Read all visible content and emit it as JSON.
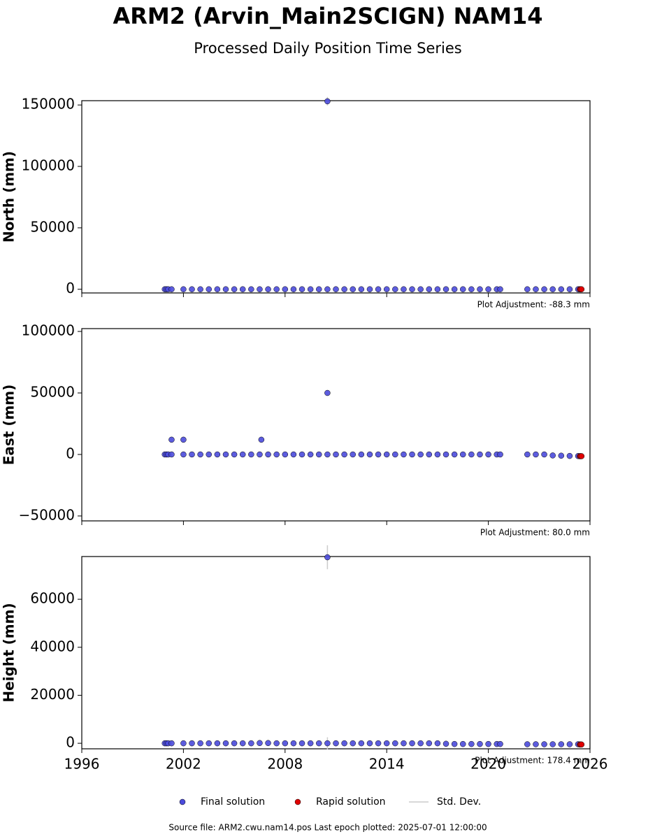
{
  "title": "ARM2 (Arvin_Main2SCIGN) NAM14",
  "subtitle": "Processed Daily Position Time Series",
  "std_dev": {
    "label": "Std. Dev.",
    "color": "#cccccc"
  },
  "footer": "Source file: ARM2.cwu.nam14.pos  Last epoch plotted: 2025-07-01 12:00:00",
  "chart_data": [
    {
      "type": "scatter",
      "ylabel": "North (mm)",
      "annotation": "Plot Adjustment: -88.3 mm",
      "xlim": [
        1996,
        2026
      ],
      "xticks": [
        1996,
        2002,
        2008,
        2014,
        2020,
        2026
      ],
      "xtick_labels": false,
      "ylim": [
        -3000,
        153500
      ],
      "yticks": [
        0,
        50000,
        100000,
        150000
      ],
      "series": [
        {
          "name": "Final solution",
          "color": "#4b4bdc",
          "x": [
            2000.9,
            2001.0,
            2001.1,
            2001.3,
            2002.0,
            2002.5,
            2003.0,
            2003.5,
            2004.0,
            2004.5,
            2005.0,
            2005.5,
            2006.0,
            2006.5,
            2007.0,
            2007.5,
            2008.0,
            2008.5,
            2009.0,
            2009.5,
            2010.0,
            2010.5,
            2011.0,
            2011.5,
            2012.0,
            2012.5,
            2013.0,
            2013.5,
            2014.0,
            2014.5,
            2015.0,
            2015.5,
            2016.0,
            2016.5,
            2017.0,
            2017.5,
            2018.0,
            2018.5,
            2019.0,
            2019.5,
            2020.0,
            2020.5,
            2020.7,
            2022.3,
            2022.8,
            2023.3,
            2023.8,
            2024.3,
            2024.8,
            2025.3,
            2010.5
          ],
          "values": [
            0,
            0,
            0,
            0,
            0,
            0,
            0,
            0,
            0,
            0,
            0,
            0,
            0,
            0,
            0,
            0,
            0,
            0,
            0,
            0,
            0,
            0,
            0,
            0,
            0,
            0,
            0,
            0,
            0,
            0,
            0,
            0,
            0,
            0,
            0,
            0,
            0,
            0,
            0,
            0,
            0,
            0,
            0,
            0,
            0,
            0,
            0,
            0,
            0,
            0,
            153000
          ],
          "errors": [
            100,
            100,
            100,
            100,
            100,
            100,
            100,
            100,
            100,
            100,
            100,
            100,
            100,
            100,
            100,
            100,
            100,
            100,
            100,
            100,
            100,
            100,
            100,
            100,
            100,
            100,
            100,
            100,
            100,
            100,
            100,
            100,
            100,
            100,
            100,
            100,
            100,
            100,
            100,
            100,
            100,
            100,
            100,
            100,
            100,
            100,
            100,
            100,
            100,
            100,
            3500
          ]
        },
        {
          "name": "Rapid solution",
          "color": "#e00000",
          "x": [
            2025.4,
            2025.45,
            2025.5
          ],
          "values": [
            0,
            0,
            0
          ],
          "errors": [
            100,
            100,
            100
          ]
        }
      ]
    },
    {
      "type": "scatter",
      "ylabel": "East (mm)",
      "annotation": "Plot Adjustment: 80.0 mm",
      "xlim": [
        1996,
        2026
      ],
      "xticks": [
        1996,
        2002,
        2008,
        2014,
        2020,
        2026
      ],
      "xtick_labels": false,
      "ylim": [
        -54000,
        102300
      ],
      "yticks": [
        {
          "value": -50000,
          "label": "−50000"
        },
        0,
        50000,
        100000
      ],
      "series": [
        {
          "name": "Final solution",
          "color": "#4b4bdc",
          "x": [
            2000.9,
            2001.0,
            2001.1,
            2001.3,
            2002.0,
            2002.5,
            2003.0,
            2003.5,
            2004.0,
            2004.5,
            2005.0,
            2005.5,
            2006.0,
            2006.5,
            2007.0,
            2007.5,
            2008.0,
            2008.5,
            2009.0,
            2009.5,
            2010.0,
            2010.5,
            2011.0,
            2011.5,
            2012.0,
            2012.5,
            2013.0,
            2013.5,
            2014.0,
            2014.5,
            2015.0,
            2015.5,
            2016.0,
            2016.5,
            2017.0,
            2017.5,
            2018.0,
            2018.5,
            2019.0,
            2019.5,
            2020.0,
            2020.5,
            2020.7,
            2022.3,
            2022.8,
            2023.3,
            2023.8,
            2024.3,
            2024.8,
            2025.3,
            2001.3,
            2002.0,
            2006.6,
            2010.5
          ],
          "values": [
            0,
            0,
            0,
            0,
            0,
            0,
            0,
            0,
            0,
            0,
            0,
            0,
            0,
            0,
            0,
            0,
            0,
            0,
            0,
            0,
            0,
            0,
            0,
            0,
            0,
            0,
            0,
            0,
            0,
            0,
            0,
            0,
            0,
            0,
            0,
            0,
            0,
            0,
            0,
            0,
            0,
            0,
            0,
            0,
            0,
            0,
            -800,
            -1000,
            -1200,
            -1300,
            12000,
            12000,
            12000,
            50000
          ],
          "errors": [
            100,
            100,
            100,
            100,
            100,
            100,
            100,
            100,
            100,
            100,
            100,
            100,
            100,
            100,
            100,
            100,
            100,
            100,
            100,
            100,
            100,
            100,
            100,
            100,
            100,
            100,
            100,
            100,
            100,
            100,
            100,
            100,
            100,
            100,
            100,
            100,
            100,
            100,
            100,
            100,
            100,
            100,
            100,
            100,
            100,
            100,
            100,
            100,
            100,
            100,
            100,
            100,
            100,
            100
          ]
        },
        {
          "name": "Rapid solution",
          "color": "#e00000",
          "x": [
            2025.4,
            2025.45,
            2025.5
          ],
          "values": [
            -1400,
            -1400,
            -1400
          ],
          "errors": [
            100,
            100,
            100
          ]
        }
      ]
    },
    {
      "type": "scatter",
      "ylabel": "Height (mm)",
      "annotation": "Plot Adjustment: 178.4 mm",
      "xlim": [
        1996,
        2026
      ],
      "xticks": [
        1996,
        2002,
        2008,
        2014,
        2020,
        2026
      ],
      "xtick_labels": true,
      "ylim": [
        -2300,
        77800
      ],
      "yticks": [
        0,
        20000,
        40000,
        60000
      ],
      "series": [
        {
          "name": "Final solution",
          "color": "#4b4bdc",
          "x": [
            2000.9,
            2001.0,
            2001.1,
            2001.3,
            2002.0,
            2002.5,
            2003.0,
            2003.5,
            2004.0,
            2004.5,
            2005.0,
            2005.5,
            2006.0,
            2006.5,
            2007.0,
            2007.5,
            2008.0,
            2008.5,
            2009.0,
            2009.5,
            2010.0,
            2010.5,
            2011.0,
            2011.5,
            2012.0,
            2012.5,
            2013.0,
            2013.5,
            2014.0,
            2014.5,
            2015.0,
            2015.5,
            2016.0,
            2016.5,
            2017.0,
            2017.5,
            2018.0,
            2018.5,
            2019.0,
            2019.5,
            2020.0,
            2020.5,
            2020.7,
            2022.3,
            2022.8,
            2023.3,
            2023.8,
            2024.3,
            2024.8,
            2025.3,
            2010.5
          ],
          "values": [
            0,
            0,
            0,
            0,
            0,
            0,
            0,
            0,
            0,
            0,
            0,
            0,
            0,
            100,
            100,
            0,
            0,
            0,
            0,
            0,
            0,
            0,
            0,
            0,
            0,
            0,
            0,
            0,
            0,
            0,
            0,
            0,
            0,
            0,
            0,
            -200,
            -300,
            -300,
            -300,
            -300,
            -300,
            -300,
            -300,
            -400,
            -400,
            -400,
            -400,
            -400,
            -400,
            -400,
            77500
          ],
          "errors": [
            200,
            200,
            200,
            200,
            200,
            200,
            200,
            200,
            200,
            200,
            200,
            200,
            200,
            200,
            200,
            200,
            200,
            200,
            200,
            200,
            200,
            2500,
            200,
            200,
            200,
            200,
            200,
            200,
            200,
            200,
            200,
            200,
            200,
            200,
            200,
            200,
            200,
            200,
            200,
            200,
            200,
            200,
            200,
            200,
            200,
            200,
            200,
            200,
            200,
            200,
            5000
          ]
        },
        {
          "name": "Rapid solution",
          "color": "#e00000",
          "x": [
            2025.4,
            2025.45,
            2025.5
          ],
          "values": [
            -500,
            -500,
            -500
          ],
          "errors": [
            200,
            200,
            200
          ]
        }
      ]
    }
  ]
}
